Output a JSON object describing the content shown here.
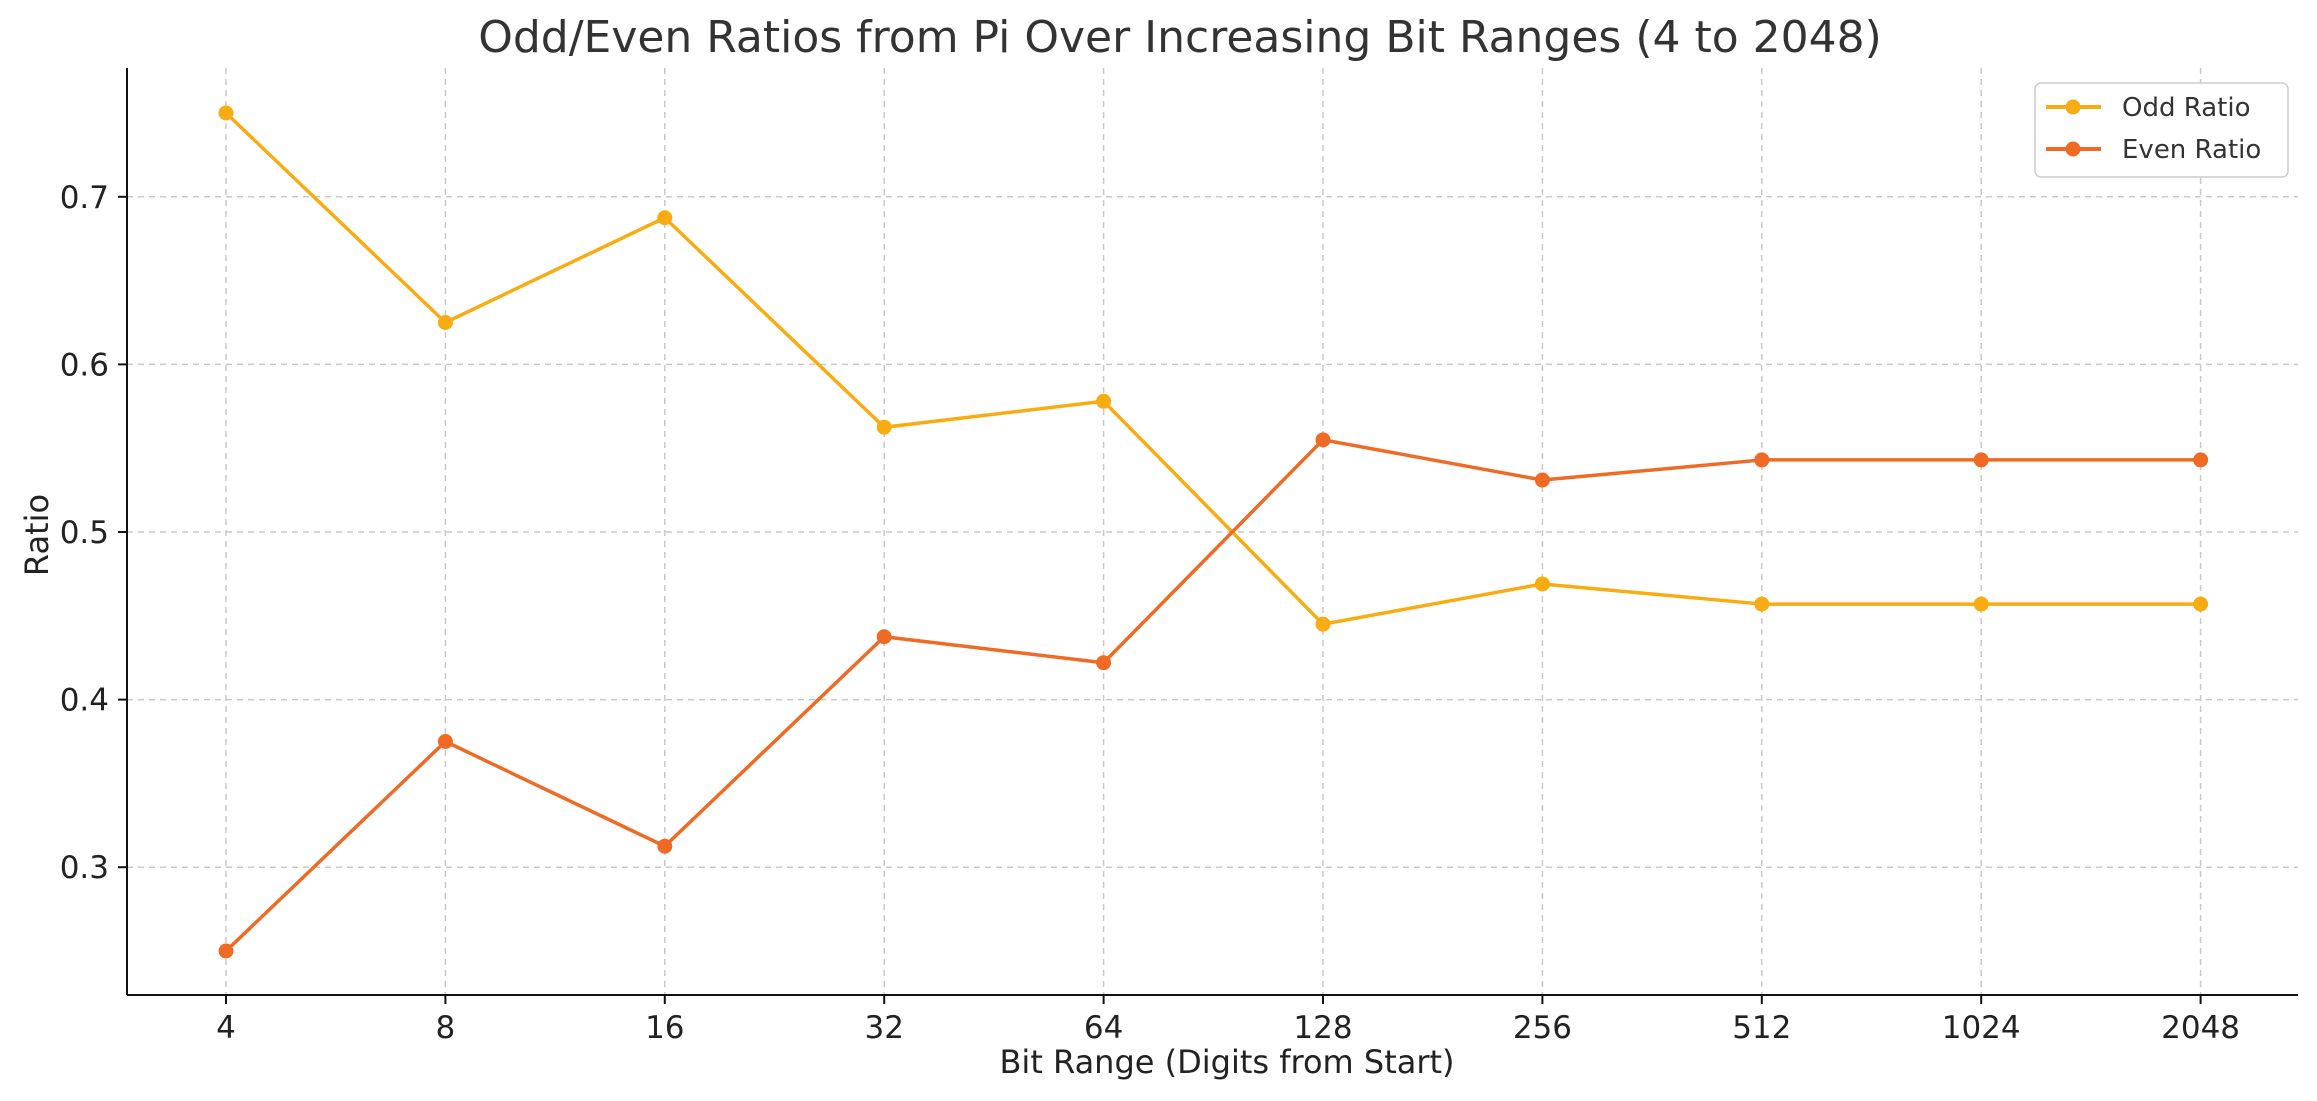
{
  "chart_data": {
    "type": "line",
    "title": "Odd/Even Ratios from Pi Over Increasing Bit Ranges (4 to 2048)",
    "xlabel": "Bit Range (Digits from Start)",
    "ylabel": "Ratio",
    "categories": [
      "4",
      "8",
      "16",
      "32",
      "64",
      "128",
      "256",
      "512",
      "1024",
      "2048"
    ],
    "yticks": [
      "0.3",
      "0.4",
      "0.5",
      "0.6",
      "0.7"
    ],
    "ylim": [
      0.225,
      0.775
    ],
    "grid": true,
    "legend_position": "top-right",
    "series": [
      {
        "name": "Odd Ratio",
        "color": "#F9AC12",
        "values": [
          0.75,
          0.625,
          0.6875,
          0.5625,
          0.578,
          0.445,
          0.469,
          0.457,
          0.457,
          0.457
        ]
      },
      {
        "name": "Even Ratio",
        "color": "#EE6A25",
        "values": [
          0.25,
          0.375,
          0.3125,
          0.4375,
          0.422,
          0.555,
          0.531,
          0.543,
          0.543,
          0.543
        ]
      }
    ]
  }
}
